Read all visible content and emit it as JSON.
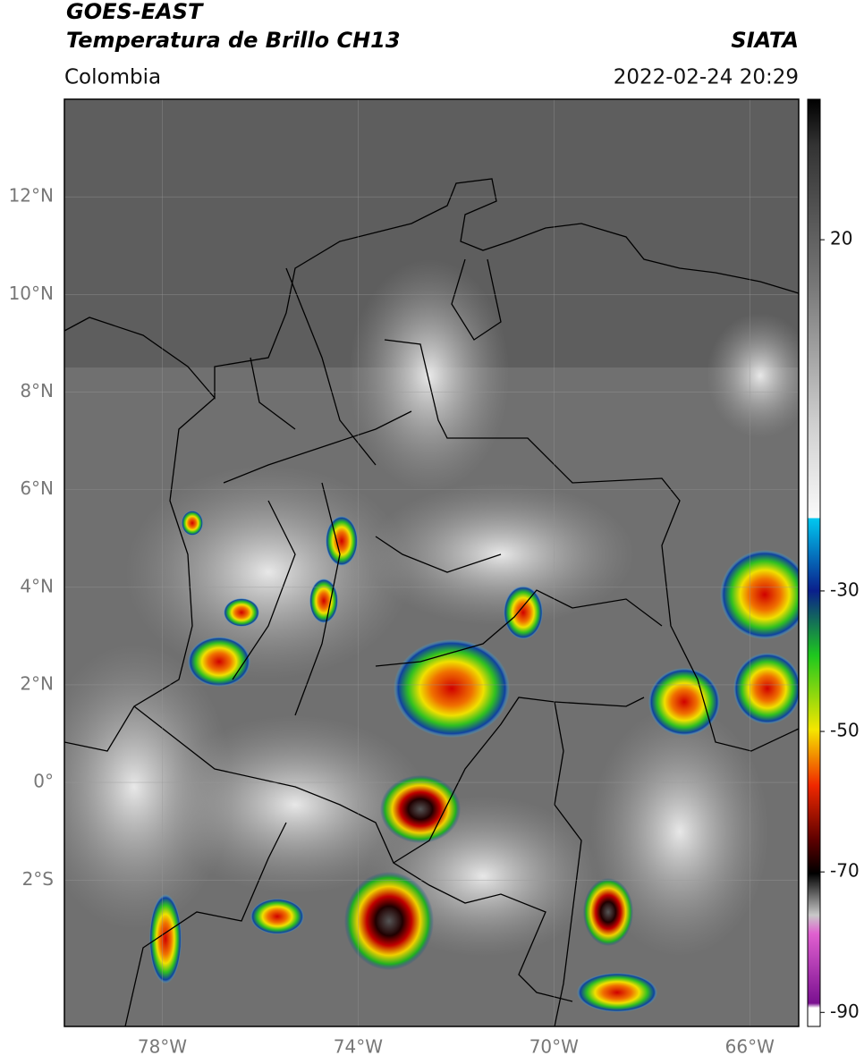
{
  "header": {
    "title": "GOES-EAST",
    "subtitle": "Temperatura de Brillo CH13",
    "source": "SIATA",
    "region": "Colombia",
    "datetime": "2022-02-24 20:29"
  },
  "map": {
    "lonlim": [
      -80,
      -65
    ],
    "latlim": [
      -5,
      14
    ],
    "lat_ticks": [
      {
        "value": 12,
        "label": "12°N"
      },
      {
        "value": 10,
        "label": "10°N"
      },
      {
        "value": 8,
        "label": "8°N"
      },
      {
        "value": 6,
        "label": "6°N"
      },
      {
        "value": 4,
        "label": "4°N"
      },
      {
        "value": 2,
        "label": "2°N"
      },
      {
        "value": 0,
        "label": "0°"
      },
      {
        "value": -2,
        "label": "2°S"
      }
    ],
    "lon_ticks": [
      {
        "value": -78,
        "label": "78°W"
      },
      {
        "value": -74,
        "label": "74°W"
      },
      {
        "value": -70,
        "label": "70°W"
      },
      {
        "value": -66,
        "label": "66°W"
      }
    ]
  },
  "colorbar": {
    "lim": [
      40,
      -92
    ],
    "ticks": [
      20,
      -30,
      -50,
      -70,
      -90
    ]
  }
}
